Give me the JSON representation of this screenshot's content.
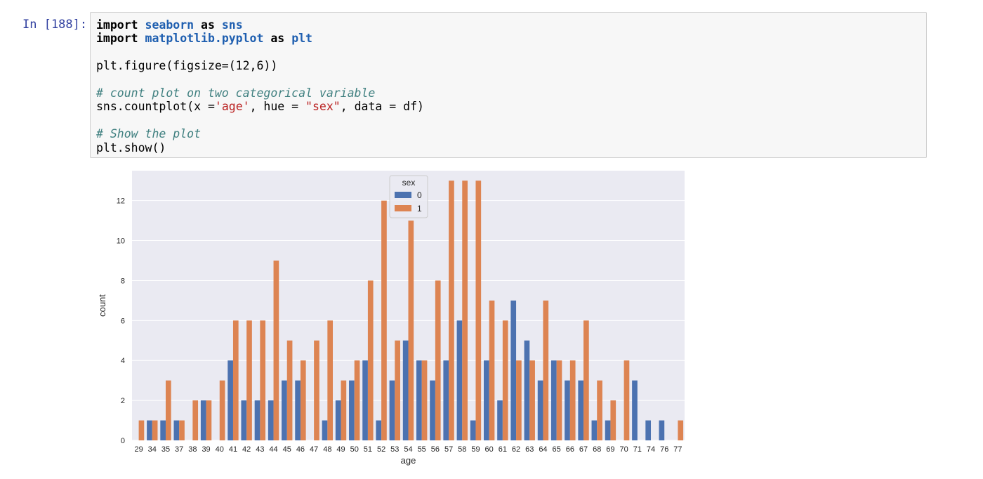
{
  "prompt": "In [188]:",
  "code": {
    "line1": {
      "kw1": "import",
      "mod": "seaborn",
      "kw2": "as",
      "alias": "sns"
    },
    "line2": {
      "kw1": "import",
      "mod": "matplotlib.pyplot",
      "kw2": "as",
      "alias": "plt"
    },
    "line3": "plt.figure(figsize=(12,6))",
    "line4_comment": "# count plot on two categorical variable",
    "line5": {
      "pre": "sns.countplot(x =",
      "s1": "'age'",
      "mid": ", hue = ",
      "s2": "\"sex\"",
      "post": ", data = df)"
    },
    "line6_comment": "# Show the plot",
    "line7": "plt.show()"
  },
  "colors": {
    "series0": "#4c72b0",
    "series1": "#dd8452",
    "plot_bg": "#eaeaf2",
    "grid": "#ffffff"
  },
  "chart_data": {
    "type": "bar",
    "xlabel": "age",
    "ylabel": "count",
    "ylim": [
      0,
      13.5
    ],
    "yticks": [
      0,
      2,
      4,
      6,
      8,
      10,
      12
    ],
    "legend": {
      "title": "sex",
      "placement": "top-center"
    },
    "categories": [
      "29",
      "34",
      "35",
      "37",
      "38",
      "39",
      "40",
      "41",
      "42",
      "43",
      "44",
      "45",
      "46",
      "47",
      "48",
      "49",
      "50",
      "51",
      "52",
      "53",
      "54",
      "55",
      "56",
      "57",
      "58",
      "59",
      "60",
      "61",
      "62",
      "63",
      "64",
      "65",
      "66",
      "67",
      "68",
      "69",
      "70",
      "71",
      "74",
      "76",
      "77"
    ],
    "series": [
      {
        "name": "0",
        "values": [
          0,
          1,
          1,
          1,
          0,
          2,
          0,
          4,
          2,
          2,
          2,
          3,
          3,
          0,
          1,
          2,
          3,
          4,
          1,
          3,
          5,
          4,
          3,
          4,
          6,
          1,
          4,
          2,
          7,
          5,
          3,
          4,
          3,
          3,
          1,
          1,
          0,
          3,
          1,
          1,
          0
        ]
      },
      {
        "name": "1",
        "values": [
          1,
          1,
          3,
          1,
          2,
          2,
          3,
          6,
          6,
          6,
          9,
          5,
          4,
          5,
          6,
          3,
          4,
          8,
          12,
          5,
          11,
          4,
          8,
          13,
          13,
          13,
          7,
          6,
          4,
          4,
          7,
          4,
          4,
          6,
          3,
          2,
          4,
          0,
          0,
          0,
          1
        ]
      }
    ]
  }
}
